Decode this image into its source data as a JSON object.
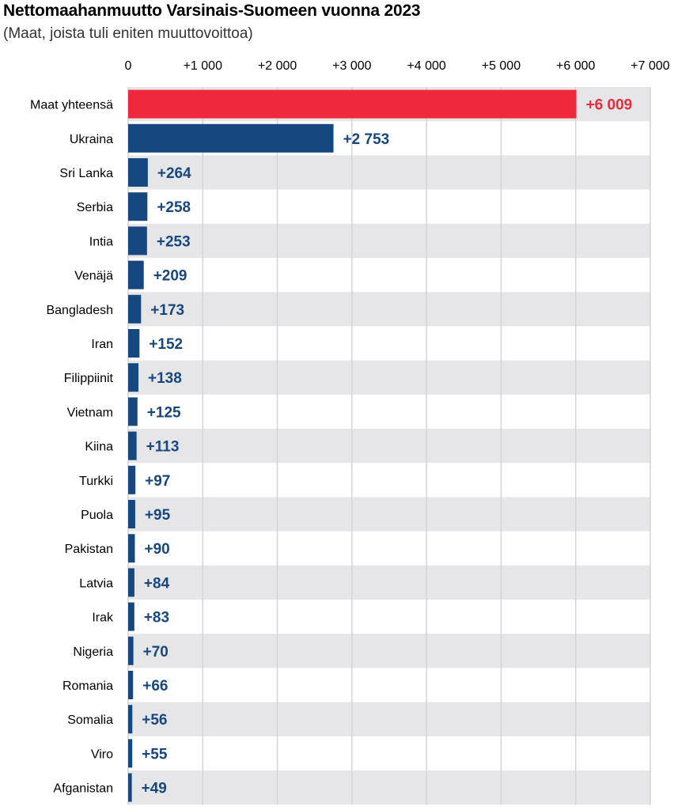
{
  "chart_data": {
    "type": "bar",
    "orientation": "horizontal",
    "title": "Nettomaahanmuutto Varsinais-Suomeen vuonna 2023",
    "subtitle": "(Maat, joista tuli eniten muuttovoittoa)",
    "xlim": [
      0,
      7000
    ],
    "ticks": [
      0,
      1000,
      2000,
      3000,
      4000,
      5000,
      6000,
      7000
    ],
    "tick_labels": [
      "0",
      "+1 000",
      "+2 000",
      "+3 000",
      "+4 000",
      "+5 000",
      "+6 000",
      "+7 000"
    ],
    "grid": true,
    "categories": [
      "Maat yhteensä",
      "Ukraina",
      "Sri Lanka",
      "Serbia",
      "Intia",
      "Venäjä",
      "Bangladesh",
      "Iran",
      "Filippiinit",
      "Vietnam",
      "Kiina",
      "Turkki",
      "Puola",
      "Pakistan",
      "Latvia",
      "Irak",
      "Nigeria",
      "Romania",
      "Somalia",
      "Viro",
      "Afganistan"
    ],
    "values": [
      6009,
      2753,
      264,
      258,
      253,
      209,
      173,
      152,
      138,
      125,
      113,
      97,
      95,
      90,
      84,
      83,
      70,
      66,
      56,
      55,
      49
    ],
    "value_labels": [
      "+6 009",
      "+2 753",
      "+264",
      "+258",
      "+253",
      "+209",
      "+173",
      "+152",
      "+138",
      "+125",
      "+113",
      "+97",
      "+95",
      "+90",
      "+84",
      "+83",
      "+70",
      "+66",
      "+56",
      "+55",
      "+49"
    ],
    "colors": {
      "total_bar": "#f0283c",
      "bar": "#17477f",
      "row_band": "#e6e6e8",
      "gridline": "#d4d4d6"
    }
  }
}
